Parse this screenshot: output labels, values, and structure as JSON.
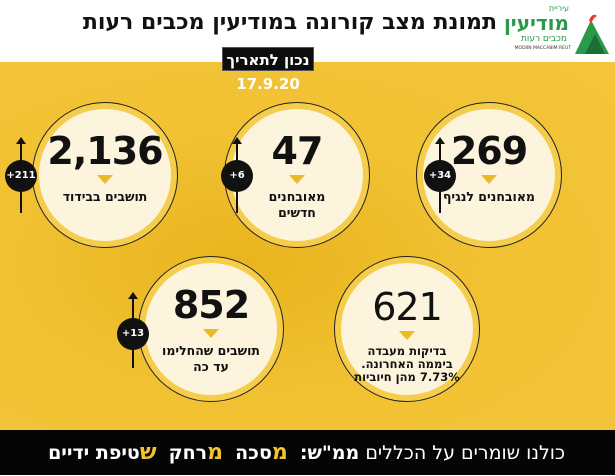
{
  "header": {
    "title": "תמונת מצב קורונה במודיעין מכבים רעות",
    "date": "נכון לתאריך 17.9.20",
    "logo": {
      "line1": "עיריית",
      "line2": "מודיעין",
      "line3": "מכבים רעות",
      "line4": "MODIIN MACCABIM REUT"
    }
  },
  "stats": [
    {
      "value": "269",
      "label": "מאובחנים לנגיף",
      "change": "+34"
    },
    {
      "value": "47",
      "label": "מאובחנים חדשים",
      "change": "+6"
    },
    {
      "value": "2,136",
      "label": "תושבים בבידוד",
      "change": "+211"
    },
    {
      "value": "621",
      "label": "בדיקות מעבדה ביממה האחרונה. 7.73% מהן חיוביות"
    },
    {
      "value": "852",
      "label": "תושבים שהחלימו עד כה",
      "change": "+13"
    }
  ],
  "footer": {
    "intro": "כולנו שומרים על הכללים",
    "mmsh": "ממ\"ש:",
    "m1": "מ",
    "w1": "סכה",
    "m2": "מ",
    "w2": "רחק",
    "s": "ש",
    "w3": "טיפת ידיים"
  },
  "colors": {
    "yellow": "#f3c32e",
    "black": "#050505",
    "cream": "#fcf4dc",
    "green": "#2a9a4a"
  }
}
